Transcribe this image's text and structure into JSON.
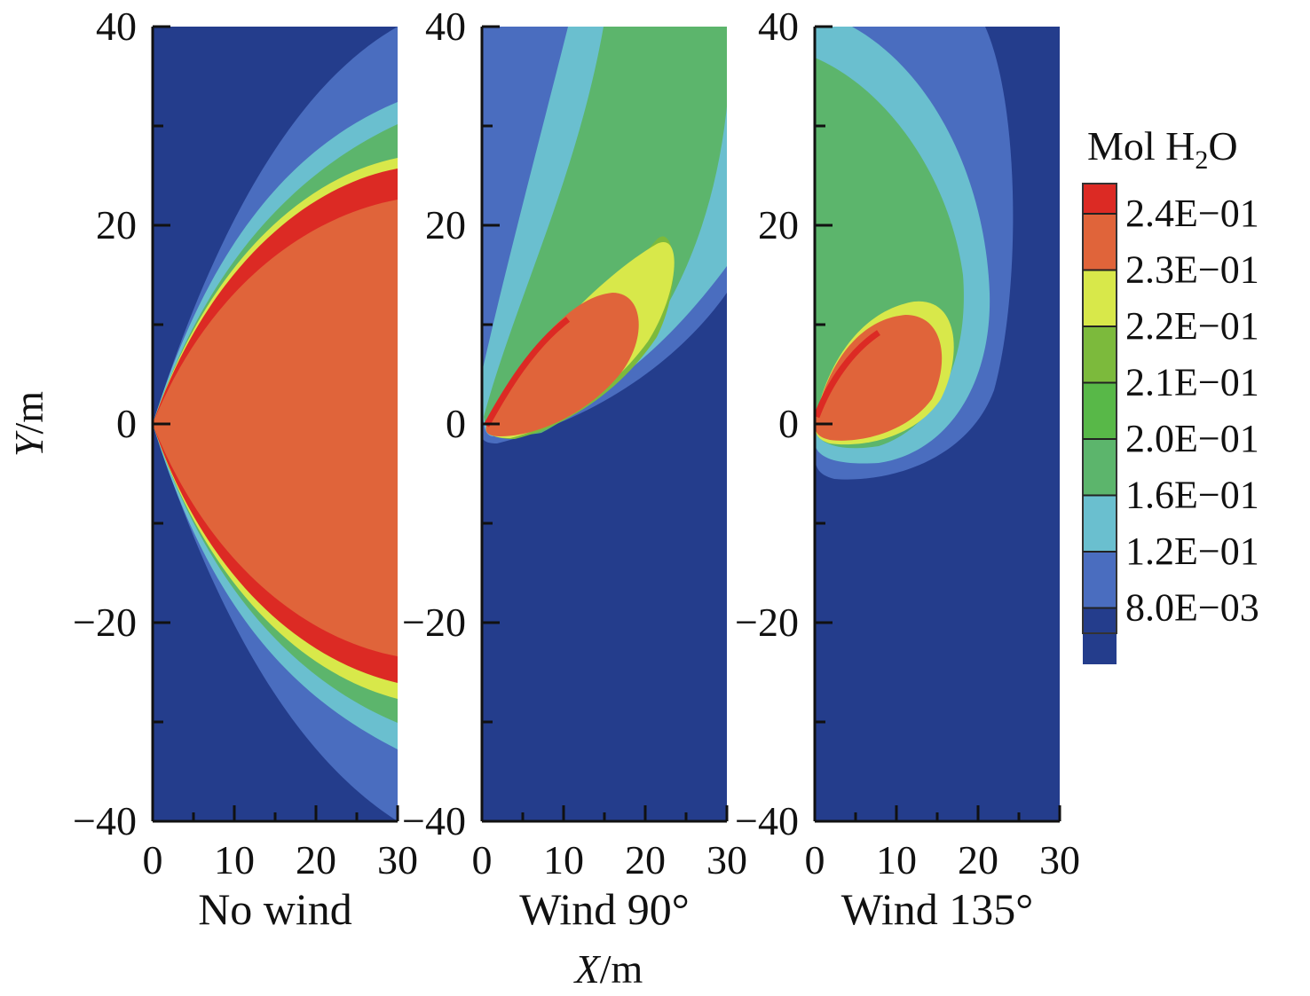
{
  "chart_data": {
    "type": "heatmap",
    "xlabel": {
      "italic": "X",
      "rest": "/m"
    },
    "ylabel": {
      "italic": "Y",
      "rest": "/m"
    },
    "xlim": [
      0,
      30
    ],
    "ylim": [
      -40,
      40
    ],
    "x_ticks": [
      0,
      10,
      20,
      30
    ],
    "y_ticks": [
      40,
      20,
      0,
      -20,
      -40
    ],
    "panels": [
      {
        "label": "No wind"
      },
      {
        "label": "Wind 90°"
      },
      {
        "label": "Wind 135°"
      }
    ],
    "legend": {
      "title": {
        "main": "Mol H",
        "sub": "2",
        "tail": "O"
      },
      "placement": "right",
      "levels": [
        {
          "label": "2.4E−01",
          "color": "#dc2a24"
        },
        {
          "label": "2.3E−01",
          "color": "#e0643a"
        },
        {
          "label": "2.2E−01",
          "color": "#d8e84a"
        },
        {
          "label": "2.1E−01",
          "color": "#7cba3c"
        },
        {
          "label": "2.0E−01",
          "color": "#58b848"
        },
        {
          "label": "1.6E−01",
          "color": "#5cb56c"
        },
        {
          "label": "1.2E−01",
          "color": "#6abfcf"
        },
        {
          "label": "8.0E−03",
          "color": "#4a6dbf"
        }
      ],
      "bottom_color": "#243d8c"
    }
  }
}
